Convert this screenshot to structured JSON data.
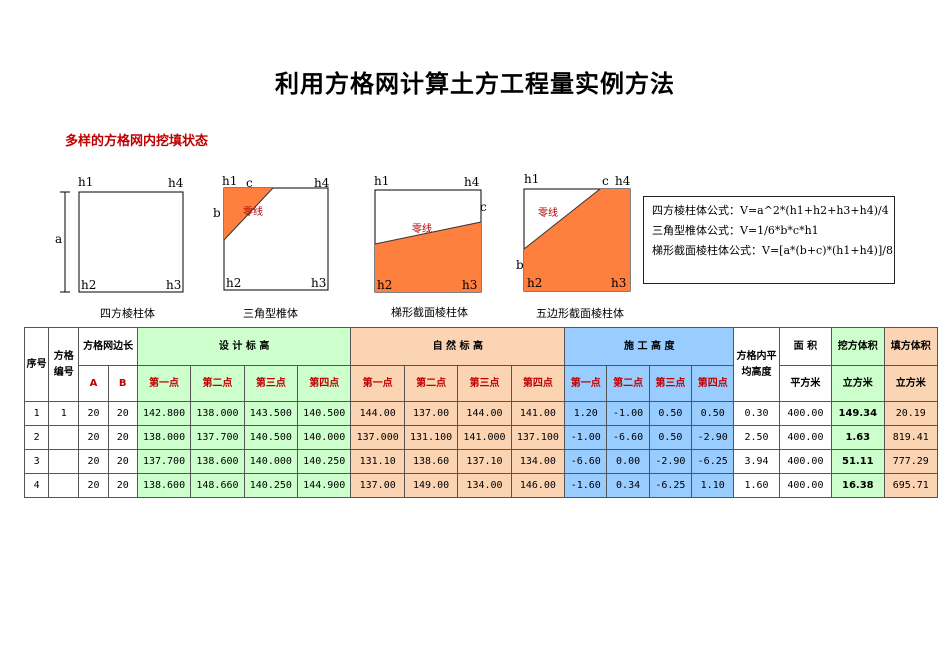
{
  "title": "利用方格网计算土方工程量实例方法",
  "subtitle": "多样的方格网内挖填状态",
  "diagrams": [
    {
      "caption": "四方棱柱体",
      "corners": [
        "h1",
        "h4",
        "h2",
        "h3"
      ],
      "side_a": "a"
    },
    {
      "caption": "三角型椎体",
      "corners": [
        "h1",
        "h4",
        "h2",
        "h3"
      ],
      "c": "c",
      "b": "b",
      "zero_line": "零线"
    },
    {
      "caption": "梯形截面棱柱体",
      "corners": [
        "h1",
        "h4",
        "h2",
        "h3"
      ],
      "c": "c",
      "zero_line": "零线"
    },
    {
      "caption": "五边形截面棱柱体",
      "corners": [
        "h1",
        "h4",
        "h2",
        "h3"
      ],
      "c": "c",
      "b": "b",
      "zero_line": "零线"
    }
  ],
  "formulas": [
    "四方棱柱体公式：V=a^2*(h1+h2+h3+h4)/4",
    "三角型椎体公式：V=1/6*b*c*h1",
    "梯形截面棱柱体公式：V=[a*(b+c)*(h1+h4)]/8"
  ],
  "table": {
    "headers": {
      "seq": "序号",
      "grid_no": "方格编号",
      "side": "方格网边长",
      "side_a": "A",
      "side_b": "B",
      "design": "设 计 标 高",
      "natural": "自 然 标 高",
      "construct": "施 工 高 度",
      "avg": "方格内平均高度",
      "area": "面 积",
      "area_unit": "平方米",
      "cut": "挖方体积",
      "cut_unit": "立方米",
      "fill": "填方体积",
      "fill_unit": "立方米",
      "points": [
        "第一点",
        "第二点",
        "第三点",
        "第四点"
      ]
    },
    "rows": [
      {
        "seq": "1",
        "no": "1",
        "a": "20",
        "b": "20",
        "design": [
          "142.800",
          "138.000",
          "143.500",
          "140.500"
        ],
        "natural": [
          "144.00",
          "137.00",
          "144.00",
          "141.00"
        ],
        "construct": [
          "1.20",
          "-1.00",
          "0.50",
          "0.50"
        ],
        "avg": "0.30",
        "area": "400.00",
        "cut": "149.34",
        "fill": "20.19"
      },
      {
        "seq": "2",
        "no": "",
        "a": "20",
        "b": "20",
        "design": [
          "138.000",
          "137.700",
          "140.500",
          "140.000"
        ],
        "natural": [
          "137.000",
          "131.100",
          "141.000",
          "137.100"
        ],
        "construct": [
          "-1.00",
          "-6.60",
          "0.50",
          "-2.90"
        ],
        "avg": "2.50",
        "area": "400.00",
        "cut": "1.63",
        "fill": "819.41"
      },
      {
        "seq": "3",
        "no": "",
        "a": "20",
        "b": "20",
        "design": [
          "137.700",
          "138.600",
          "140.000",
          "140.250"
        ],
        "natural": [
          "131.10",
          "138.60",
          "137.10",
          "134.00"
        ],
        "construct": [
          "-6.60",
          "0.00",
          "-2.90",
          "-6.25"
        ],
        "avg": "3.94",
        "area": "400.00",
        "cut": "51.11",
        "fill": "777.29"
      },
      {
        "seq": "4",
        "no": "",
        "a": "20",
        "b": "20",
        "design": [
          "138.600",
          "148.660",
          "140.250",
          "144.900"
        ],
        "natural": [
          "137.00",
          "149.00",
          "134.00",
          "146.00"
        ],
        "construct": [
          "-1.60",
          "0.34",
          "-6.25",
          "1.10"
        ],
        "avg": "1.60",
        "area": "400.00",
        "cut": "16.38",
        "fill": "695.71"
      }
    ]
  }
}
